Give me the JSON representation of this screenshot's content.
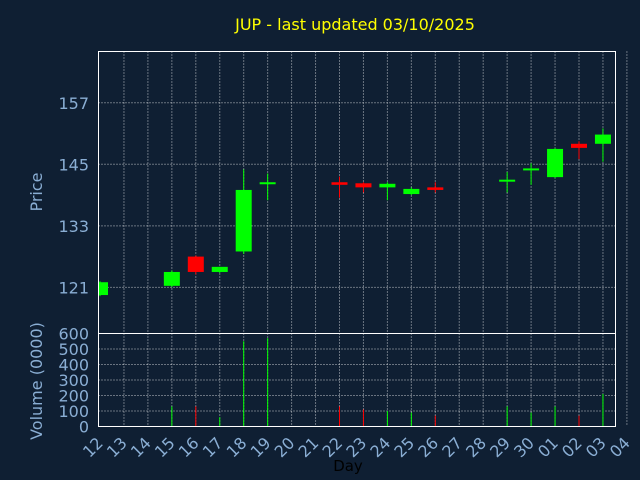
{
  "chart_data": {
    "type": "candlestick",
    "title": "JUP - last updated 03/10/2025",
    "price_panel": {
      "ylabel": "Price",
      "yticks": [
        121,
        133,
        145,
        157
      ],
      "ylim": [
        112,
        167
      ]
    },
    "volume_panel": {
      "ylabel": "Volume (0000)",
      "yticks": [
        0,
        100,
        200,
        300,
        400,
        500,
        600
      ],
      "ylim": [
        0,
        600
      ]
    },
    "xlabel": "Day",
    "x_ticks": [
      "12",
      "13",
      "14",
      "15",
      "16",
      "17",
      "18",
      "19",
      "20",
      "21",
      "22",
      "23",
      "24",
      "25",
      "26",
      "27",
      "28",
      "29",
      "30",
      "01",
      "02",
      "03",
      "04"
    ],
    "grid": true,
    "colors": {
      "up": "#00ff00",
      "down": "#ff0000",
      "grid": "#ffffff",
      "background": "#0f1f33"
    },
    "candles": [
      {
        "day": "12",
        "open": 119.5,
        "high": 122.2,
        "low": 119.3,
        "close": 122.0,
        "volume": 0
      },
      {
        "day": "15",
        "open": 121.3,
        "high": 124.3,
        "low": 121.0,
        "close": 124.0,
        "volume": 130
      },
      {
        "day": "16",
        "open": 127.0,
        "high": 127.2,
        "low": 123.5,
        "close": 124.0,
        "volume": 130
      },
      {
        "day": "17",
        "open": 124.0,
        "high": 125.0,
        "low": 123.8,
        "close": 125.0,
        "volume": 60
      },
      {
        "day": "18",
        "open": 128.0,
        "high": 144.0,
        "low": 127.5,
        "close": 140.0,
        "volume": 550
      },
      {
        "day": "19",
        "open": 141.2,
        "high": 143.2,
        "low": 138.0,
        "close": 141.5,
        "volume": 570
      },
      {
        "day": "22",
        "open": 141.5,
        "high": 142.6,
        "low": 138.5,
        "close": 141.0,
        "volume": 130
      },
      {
        "day": "23",
        "open": 141.3,
        "high": 141.5,
        "low": 139.5,
        "close": 140.5,
        "volume": 110
      },
      {
        "day": "24",
        "open": 140.5,
        "high": 141.5,
        "low": 138.0,
        "close": 141.2,
        "volume": 100
      },
      {
        "day": "25",
        "open": 139.2,
        "high": 140.5,
        "low": 139.0,
        "close": 140.2,
        "volume": 90
      },
      {
        "day": "26",
        "open": 140.5,
        "high": 141.5,
        "low": 139.5,
        "close": 140.0,
        "volume": 70
      },
      {
        "day": "29",
        "open": 141.8,
        "high": 143.5,
        "low": 139.5,
        "close": 142.0,
        "volume": 130
      },
      {
        "day": "30",
        "open": 144.0,
        "high": 145.2,
        "low": 141.0,
        "close": 144.2,
        "volume": 90
      },
      {
        "day": "01",
        "open": 142.5,
        "high": 148.2,
        "low": 142.3,
        "close": 148.0,
        "volume": 130
      },
      {
        "day": "02",
        "open": 149.0,
        "high": 149.5,
        "low": 146.0,
        "close": 148.2,
        "volume": 70
      },
      {
        "day": "03",
        "open": 149.0,
        "high": 152.0,
        "low": 145.5,
        "close": 150.8,
        "volume": 210
      }
    ]
  }
}
